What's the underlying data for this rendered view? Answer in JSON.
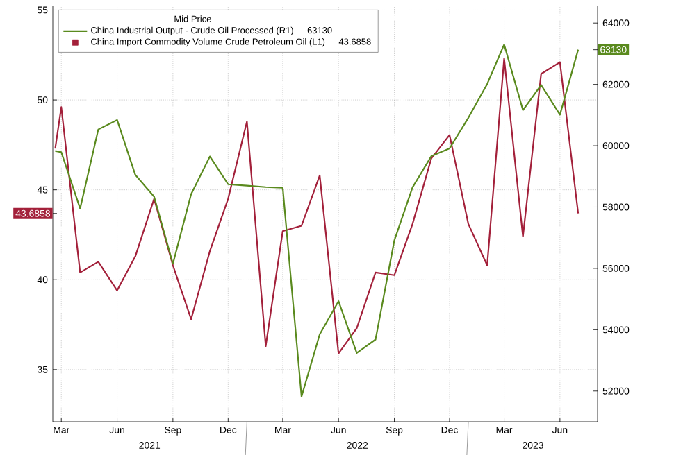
{
  "chart_data": {
    "type": "line",
    "legend": "top left",
    "legend_title": "Mid Price",
    "grid": true,
    "x": [
      "2021-02-19",
      "2021-03-01",
      "2021-04-01",
      "2021-05-01",
      "2021-06-01",
      "2021-07-01",
      "2021-08-01",
      "2021-09-01",
      "2021-10-01",
      "2021-11-01",
      "2021-12-01",
      "2022-01-01",
      "2022-02-01",
      "2022-03-01",
      "2022-04-01",
      "2022-05-01",
      "2022-06-01",
      "2022-07-01",
      "2022-08-01",
      "2022-09-01",
      "2022-10-01",
      "2022-11-01",
      "2022-12-01",
      "2023-01-01",
      "2023-02-01",
      "2023-03-01",
      "2023-04-01",
      "2023-05-01",
      "2023-06-01",
      "2023-07-01"
    ],
    "xlim": [
      "2021-02-15",
      "2023-08-02"
    ],
    "xticks": [
      {
        "value": "2021-03-01",
        "label": "Mar"
      },
      {
        "value": "2021-06-01",
        "label": "Jun"
      },
      {
        "value": "2021-09-01",
        "label": "Sep"
      },
      {
        "value": "2021-12-01",
        "label": "Dec"
      },
      {
        "value": "2022-03-01",
        "label": "Mar"
      },
      {
        "value": "2022-06-01",
        "label": "Jun"
      },
      {
        "value": "2022-09-01",
        "label": "Sep"
      },
      {
        "value": "2022-12-01",
        "label": "Dec"
      },
      {
        "value": "2023-03-01",
        "label": "Mar"
      },
      {
        "value": "2023-06-01",
        "label": "Jun"
      }
    ],
    "ylim": [
      32.1,
      55.25
    ],
    "yticks": [
      35,
      40,
      45,
      50,
      55,
      {
        "value": 43.6858,
        "label": "43.6858"
      }
    ],
    "y2lim": [
      51000,
      64570
    ],
    "y2ticks": [
      52000,
      54000,
      56000,
      58000,
      60000,
      62000,
      64000,
      {
        "value": 63130,
        "label": "63130"
      }
    ],
    "annotations": [
      "63130",
      "43.6858",
      "2021",
      "2022",
      "2023"
    ],
    "series": [
      {
        "name": "China Industrial Output - Crude Oil Processed (R1)",
        "color": "#5a8a1e",
        "axis": "y2",
        "values": [
          59830,
          59790,
          57950,
          60530,
          60840,
          59050,
          58340,
          56150,
          58420,
          59650,
          58740,
          58700,
          58650,
          58630,
          51820,
          53850,
          54930,
          53240,
          53680,
          56910,
          58640,
          59660,
          59910,
          60910,
          62010,
          63300,
          61160,
          61980,
          61010,
          63130
        ]
      },
      {
        "name": "China Import Commodity Volume Crude Petroleum Oil (L1)",
        "color": "#a3203a",
        "axis": "y",
        "values": [
          47.3,
          49.6,
          40.4,
          41.0,
          39.4,
          41.3,
          44.5,
          40.8,
          37.8,
          41.6,
          44.5,
          48.8,
          36.3,
          42.7,
          43.0,
          45.8,
          35.9,
          37.3,
          40.4,
          40.25,
          43.1,
          46.75,
          48.05,
          43.1,
          40.8,
          52.3,
          42.4,
          51.45,
          52.1,
          43.6858
        ]
      }
    ]
  }
}
